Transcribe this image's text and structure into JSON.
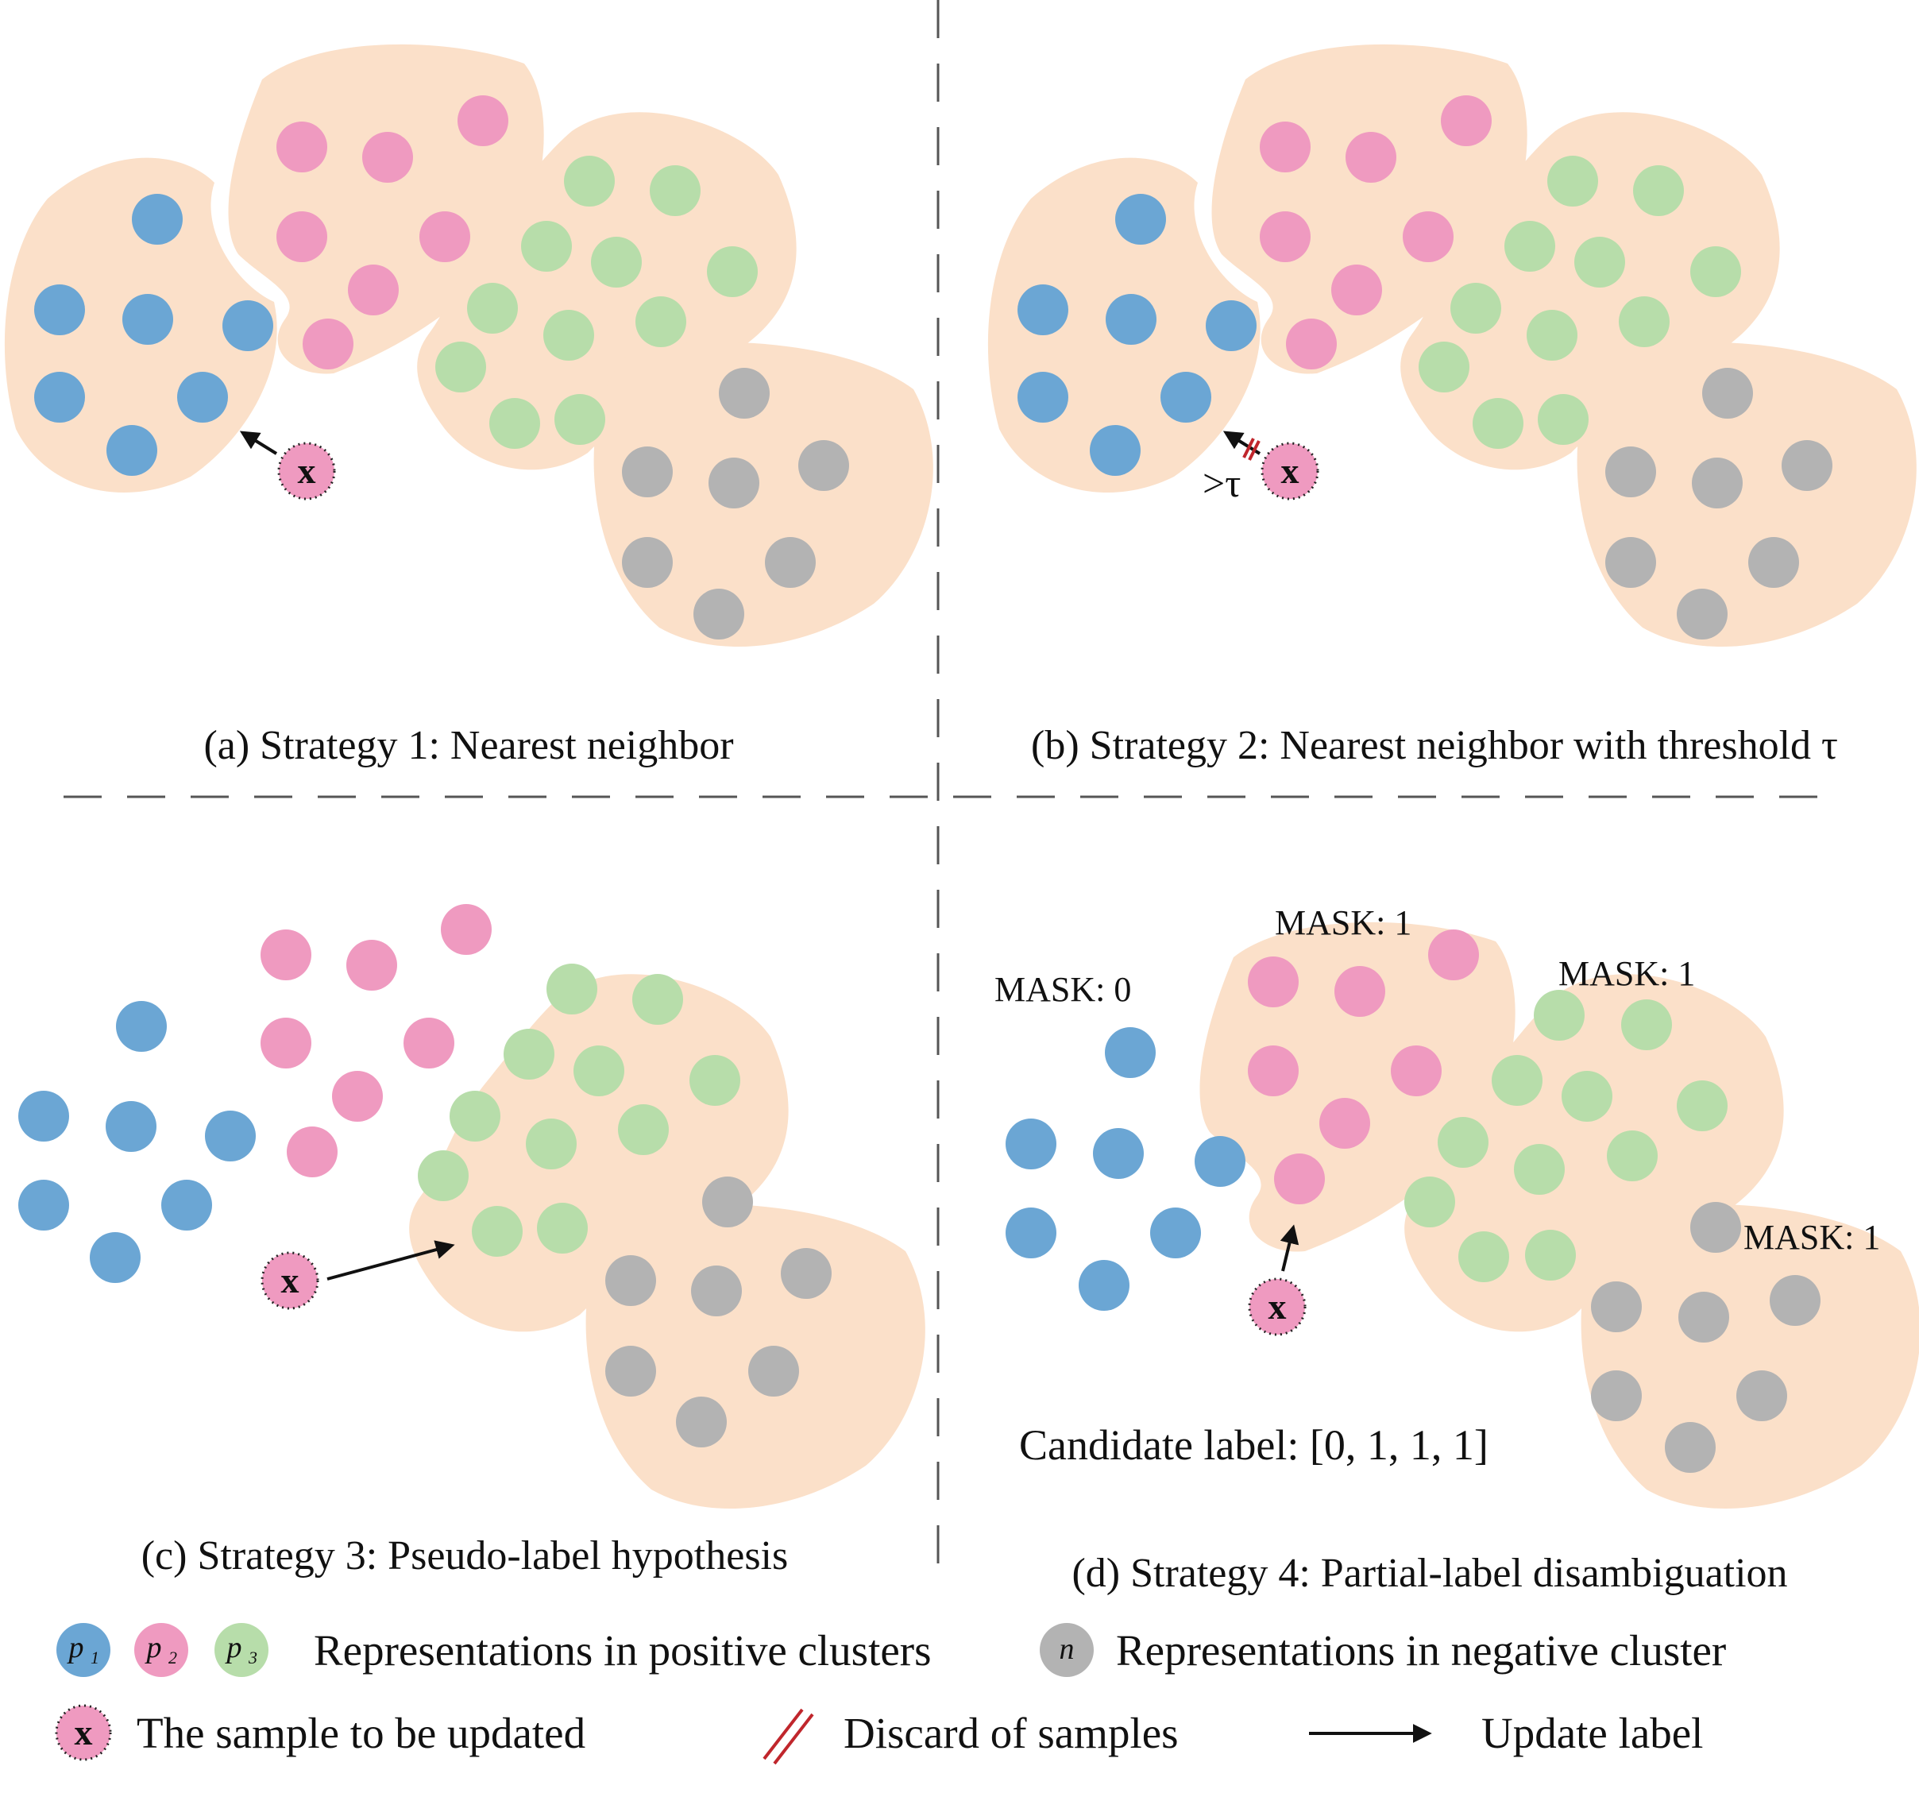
{
  "panels": {
    "a": {
      "caption": "(a) Strategy 1: Nearest neighbor"
    },
    "b": {
      "caption": "(b) Strategy 2: Nearest neighbor with threshold τ",
      "threshold_label": ">τ"
    },
    "c": {
      "caption": "(c) Strategy 3: Pseudo-label hypothesis"
    },
    "d": {
      "caption": "(d) Strategy 4: Partial-label disambiguation",
      "masks": [
        "MASK: 0",
        "MASK: 1",
        "MASK: 1",
        "MASK: 1"
      ],
      "candidate_label": "Candidate label: [0, 1, 1, 1]"
    }
  },
  "sample_symbol": "x",
  "legend": {
    "p1": "p",
    "p1_sub": "1",
    "p2": "p",
    "p2_sub": "2",
    "p3": "p",
    "p3_sub": "3",
    "n": "n",
    "positive_label": "Representations in positive clusters",
    "negative_label": "Representations in negative cluster",
    "sample_label": "The sample to be updated",
    "discard_label": "Discard of samples",
    "update_label": "Update label"
  },
  "colors": {
    "p1": "#6ba6d4",
    "p2": "#ef9ac0",
    "p3": "#b7ddaa",
    "n": "#b3b3b3",
    "cluster_region": "#fbe0c9",
    "discard": "#c0262c"
  }
}
